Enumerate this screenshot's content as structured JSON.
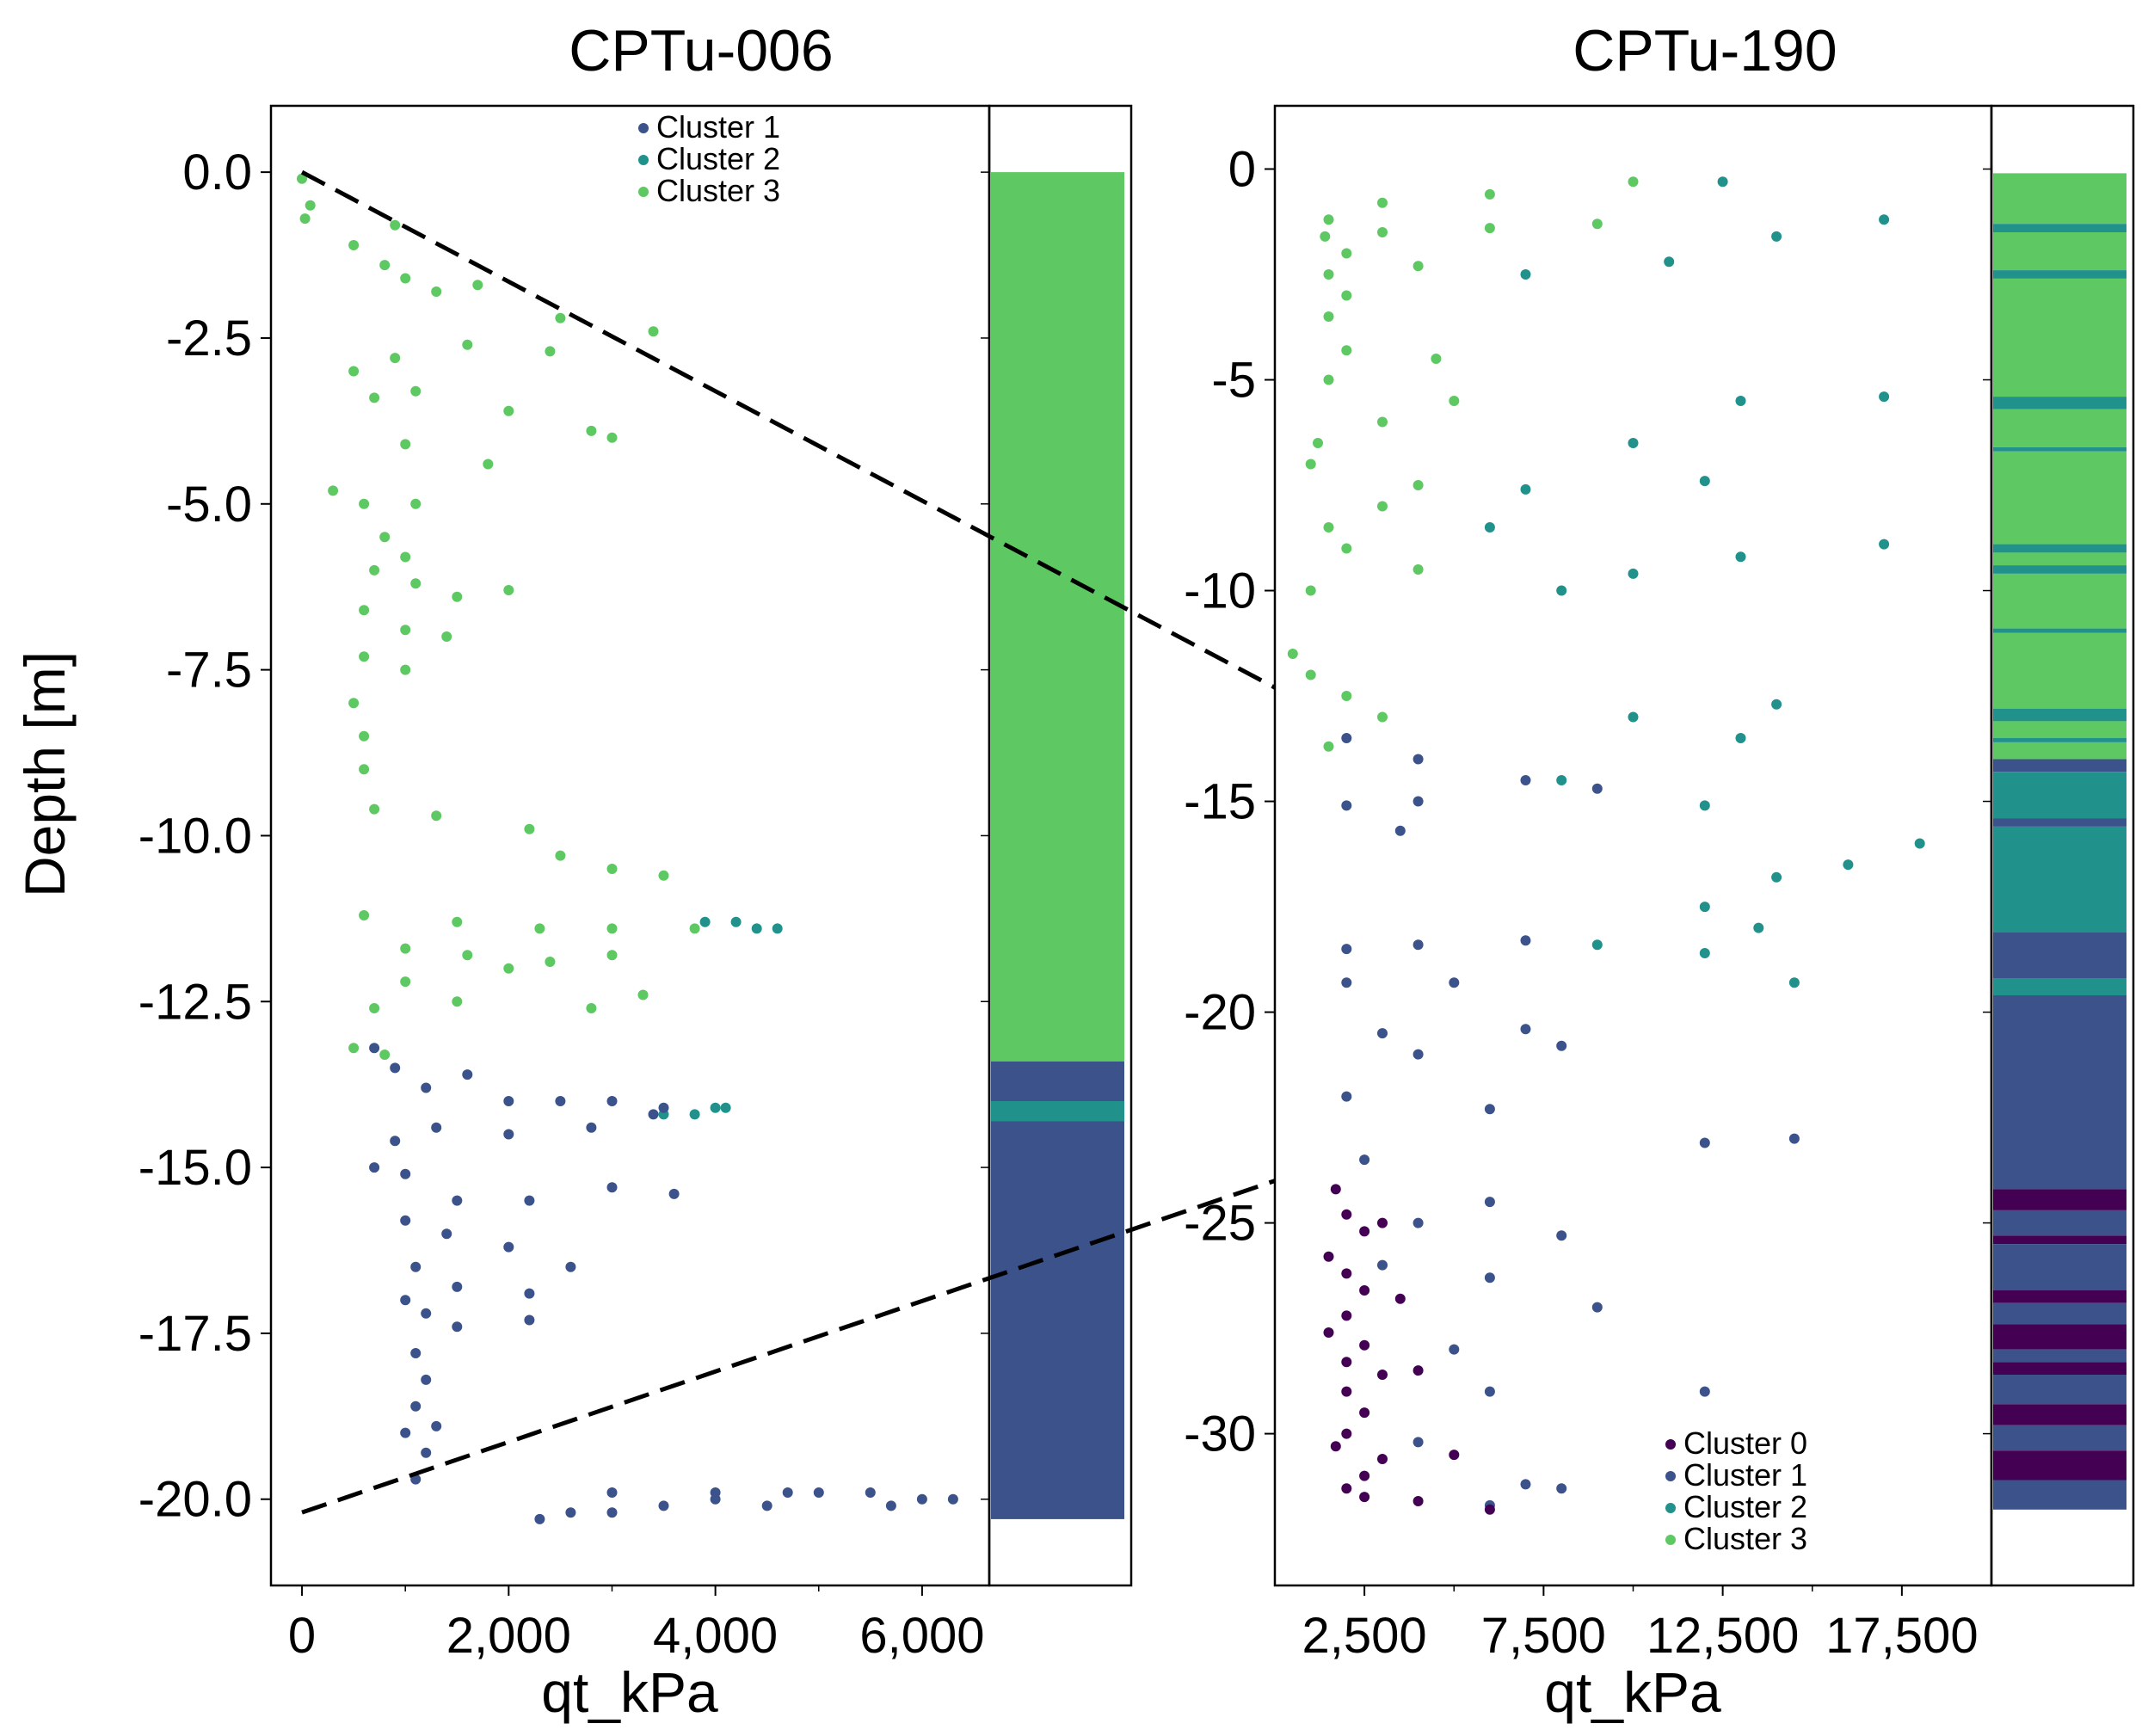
{
  "colors": {
    "cluster_0": "#440154",
    "cluster_1": "#3b528b",
    "cluster_2": "#21918c",
    "cluster_3": "#5ec962",
    "connector": "#000000"
  },
  "ylabel": "Depth [m]",
  "chart_data": [
    {
      "type": "scatter",
      "title": "CPTu-006",
      "xlabel": "qt_kPa",
      "ylabel": "Depth [m]",
      "xlim": [
        -300,
        6650
      ],
      "ylim": [
        -21.3,
        1.0
      ],
      "xticks": [
        0,
        2000,
        4000,
        6000
      ],
      "xtick_labels": [
        "0",
        "2,000",
        "4,000",
        "6,000"
      ],
      "yticks": [
        0,
        -2.5,
        -5,
        -7.5,
        -10,
        -12.5,
        -15,
        -17.5,
        -20
      ],
      "ytick_labels": [
        "0.0",
        "-2.5",
        "-5.0",
        "-7.5",
        "-10.0",
        "-12.5",
        "-15.0",
        "-17.5",
        "-20.0"
      ],
      "legend": [
        "Cluster 1",
        "Cluster 2",
        "Cluster 3"
      ],
      "legend_position": "top-right",
      "series": [
        {
          "name": "Cluster 3",
          "cluster": 3,
          "x": [
            0,
            30,
            80,
            900,
            500,
            800,
            1000,
            1300,
            1700,
            2500,
            3400,
            500,
            900,
            1600,
            2400,
            700,
            1100,
            2000,
            2800,
            1000,
            1800,
            3000,
            300,
            600,
            1100,
            800,
            1000,
            700,
            1100,
            1500,
            2000,
            600,
            1000,
            1400,
            600,
            1000,
            500,
            600,
            600,
            700,
            1300,
            2200,
            2500,
            3000,
            3500,
            600,
            1500,
            2300,
            3000,
            1000,
            1600,
            2400,
            3000,
            3800,
            1000,
            2000,
            3300,
            700,
            1500,
            2800,
            500,
            800
          ],
          "y": [
            -0.1,
            -0.7,
            -0.5,
            -0.8,
            -1.1,
            -1.4,
            -1.6,
            -1.8,
            -1.7,
            -2.2,
            -2.4,
            -3.0,
            -2.8,
            -2.6,
            -2.7,
            -3.4,
            -3.3,
            -3.6,
            -3.9,
            -4.1,
            -4.4,
            -4.0,
            -4.8,
            -5.0,
            -5.0,
            -5.5,
            -5.8,
            -6.0,
            -6.2,
            -6.4,
            -6.3,
            -6.6,
            -6.9,
            -7.0,
            -7.3,
            -7.5,
            -8.0,
            -8.5,
            -9.0,
            -9.6,
            -9.7,
            -9.9,
            -10.3,
            -10.5,
            -10.6,
            -11.2,
            -11.3,
            -11.4,
            -11.4,
            -11.7,
            -11.8,
            -11.9,
            -11.8,
            -11.4,
            -12.2,
            -12.0,
            -12.4,
            -12.6,
            -12.5,
            -12.6,
            -13.2,
            -13.3
          ]
        },
        {
          "name": "Cluster 2",
          "cluster": 2,
          "x": [
            3900,
            4200,
            4400,
            4600,
            3500,
            3800,
            4000,
            4100
          ],
          "y": [
            -11.3,
            -11.3,
            -11.4,
            -11.4,
            -14.2,
            -14.2,
            -14.1,
            -14.1
          ]
        },
        {
          "name": "Cluster 1",
          "cluster": 1,
          "x": [
            700,
            900,
            1200,
            1600,
            2000,
            2500,
            3000,
            3500,
            900,
            1300,
            2000,
            2800,
            3400,
            700,
            1000,
            1500,
            2200,
            3000,
            3600,
            1000,
            1400,
            2000,
            2600,
            1100,
            1500,
            2200,
            1000,
            1200,
            1500,
            2200,
            1100,
            1200,
            1100,
            1300,
            1000,
            1200,
            1100,
            2300,
            2600,
            3000,
            3500,
            4000,
            4500,
            5000,
            5500,
            5700,
            6000,
            6300,
            3000,
            4000,
            4700
          ],
          "y": [
            -13.2,
            -13.5,
            -13.8,
            -13.6,
            -14.0,
            -14.0,
            -14.0,
            -14.1,
            -14.6,
            -14.4,
            -14.5,
            -14.4,
            -14.2,
            -15.0,
            -15.1,
            -15.5,
            -15.5,
            -15.3,
            -15.4,
            -15.8,
            -16.0,
            -16.2,
            -16.5,
            -16.5,
            -16.8,
            -16.9,
            -17.0,
            -17.2,
            -17.4,
            -17.3,
            -17.8,
            -18.2,
            -18.6,
            -18.9,
            -19.0,
            -19.3,
            -19.7,
            -20.3,
            -20.2,
            -20.2,
            -20.1,
            -20.0,
            -20.1,
            -19.9,
            -19.9,
            -20.1,
            -20.0,
            -20.0,
            -19.9,
            -19.9,
            -19.9
          ]
        }
      ],
      "cluster_bar": [
        {
          "cluster": 3,
          "top": 0,
          "bottom": -13.4
        },
        {
          "cluster": 1,
          "top": -13.4,
          "bottom": -14.0
        },
        {
          "cluster": 2,
          "top": -14.0,
          "bottom": -14.3
        },
        {
          "cluster": 1,
          "top": -14.3,
          "bottom": -20.3
        }
      ]
    },
    {
      "type": "scatter",
      "title": "CPTu-190",
      "xlabel": "qt_kPa",
      "xlim": [
        0,
        20000
      ],
      "ylim": [
        -33.6,
        1.5
      ],
      "xticks": [
        2500,
        7500,
        12500,
        17500
      ],
      "xtick_labels": [
        "2,500",
        "7,500",
        "12,500",
        "17,500"
      ],
      "yticks": [
        0,
        -5,
        -10,
        -15,
        -20,
        -25,
        -30
      ],
      "ytick_labels": [
        "0",
        "-5",
        "-10",
        "-15",
        "-20",
        "-25",
        "-30"
      ],
      "legend": [
        "Cluster 0",
        "Cluster 1",
        "Cluster 2",
        "Cluster 3"
      ],
      "legend_position": "bottom-right",
      "series": [
        {
          "name": "Cluster 3",
          "cluster": 3,
          "x": [
            10000,
            6000,
            3000,
            1500,
            1400,
            3000,
            6000,
            9000,
            2000,
            1500,
            4000,
            2000,
            1500,
            4500,
            2000,
            1500,
            5000,
            3000,
            1200,
            1000,
            4000,
            3000,
            1500,
            2000,
            4000,
            1000,
            500,
            1000,
            2000,
            3000,
            1500
          ],
          "y": [
            -0.3,
            -0.6,
            -0.8,
            -1.2,
            -1.6,
            -1.5,
            -1.4,
            -1.3,
            -2.0,
            -2.5,
            -2.3,
            -3.0,
            -3.5,
            -4.5,
            -4.3,
            -5.0,
            -5.5,
            -6.0,
            -6.5,
            -7.0,
            -7.5,
            -8.0,
            -8.5,
            -9.0,
            -9.5,
            -10.0,
            -11.5,
            -12.0,
            -12.5,
            -13.0,
            -13.7
          ]
        },
        {
          "name": "Cluster 2",
          "cluster": 2,
          "x": [
            12500,
            17000,
            14000,
            11000,
            7000,
            17000,
            13000,
            10000,
            12000,
            7000,
            6000,
            17000,
            13000,
            10000,
            8000,
            14000,
            10000,
            13000,
            8000,
            12000,
            18000,
            16000,
            14000,
            12000,
            13500,
            9000,
            12000,
            14500
          ],
          "y": [
            -0.3,
            -1.2,
            -1.6,
            -2.2,
            -2.5,
            -5.4,
            -5.5,
            -6.5,
            -7.4,
            -7.6,
            -8.5,
            -8.9,
            -9.2,
            -9.6,
            -10.0,
            -12.7,
            -13.0,
            -13.5,
            -14.5,
            -15.1,
            -16.0,
            -16.5,
            -16.8,
            -17.5,
            -18.0,
            -18.4,
            -18.6,
            -19.3
          ]
        },
        {
          "name": "Cluster 1",
          "cluster": 1,
          "x": [
            2000,
            4000,
            7000,
            9000,
            4000,
            2000,
            3500,
            2000,
            4000,
            7000,
            2000,
            5000,
            3000,
            7000,
            4000,
            8000,
            2000,
            6000,
            2500,
            12000,
            14500,
            6000,
            4000,
            8000,
            3000,
            6000,
            9000,
            5000,
            6000,
            12000,
            4000,
            7000,
            8000,
            6000
          ],
          "y": [
            -13.5,
            -14.0,
            -14.5,
            -14.7,
            -15.0,
            -15.1,
            -15.7,
            -18.5,
            -18.4,
            -18.3,
            -19.3,
            -19.3,
            -20.5,
            -20.4,
            -21.0,
            -20.8,
            -22.0,
            -22.3,
            -23.5,
            -23.1,
            -23.0,
            -24.5,
            -25.0,
            -25.3,
            -26.0,
            -26.3,
            -27.0,
            -28.0,
            -29.0,
            -29.0,
            -30.2,
            -31.2,
            -31.3,
            -31.7
          ]
        },
        {
          "name": "Cluster 0",
          "cluster": 0,
          "x": [
            1700,
            2000,
            2500,
            3000,
            1500,
            2000,
            2500,
            3500,
            2000,
            1500,
            2500,
            2000,
            3000,
            4000,
            2000,
            2500,
            2000,
            1700,
            3000,
            5000,
            2500,
            2000,
            2500,
            4000,
            6000
          ],
          "y": [
            -24.2,
            -24.8,
            -25.2,
            -25.0,
            -25.8,
            -26.2,
            -26.6,
            -26.8,
            -27.2,
            -27.6,
            -27.9,
            -28.3,
            -28.6,
            -28.5,
            -29.0,
            -29.5,
            -30.0,
            -30.3,
            -30.6,
            -30.5,
            -31.0,
            -31.3,
            -31.5,
            -31.6,
            -31.8
          ]
        }
      ],
      "cluster_bar": [
        {
          "cluster": 3,
          "top": -0.1,
          "bottom": -1.3
        },
        {
          "cluster": 2,
          "top": -1.3,
          "bottom": -1.5
        },
        {
          "cluster": 3,
          "top": -1.5,
          "bottom": -2.4
        },
        {
          "cluster": 2,
          "top": -2.4,
          "bottom": -2.6
        },
        {
          "cluster": 3,
          "top": -2.6,
          "bottom": -5.4
        },
        {
          "cluster": 2,
          "top": -5.4,
          "bottom": -5.7
        },
        {
          "cluster": 3,
          "top": -5.7,
          "bottom": -6.6
        },
        {
          "cluster": 2,
          "top": -6.6,
          "bottom": -6.7
        },
        {
          "cluster": 3,
          "top": -6.7,
          "bottom": -8.9
        },
        {
          "cluster": 2,
          "top": -8.9,
          "bottom": -9.1
        },
        {
          "cluster": 3,
          "top": -9.1,
          "bottom": -9.4
        },
        {
          "cluster": 2,
          "top": -9.4,
          "bottom": -9.6
        },
        {
          "cluster": 3,
          "top": -9.6,
          "bottom": -10.9
        },
        {
          "cluster": 2,
          "top": -10.9,
          "bottom": -11.0
        },
        {
          "cluster": 3,
          "top": -11.0,
          "bottom": -12.8
        },
        {
          "cluster": 2,
          "top": -12.8,
          "bottom": -13.1
        },
        {
          "cluster": 3,
          "top": -13.1,
          "bottom": -13.5
        },
        {
          "cluster": 2,
          "top": -13.5,
          "bottom": -13.6
        },
        {
          "cluster": 3,
          "top": -13.6,
          "bottom": -14.0
        },
        {
          "cluster": 1,
          "top": -14.0,
          "bottom": -14.3
        },
        {
          "cluster": 2,
          "top": -14.3,
          "bottom": -15.4
        },
        {
          "cluster": 1,
          "top": -15.4,
          "bottom": -15.6
        },
        {
          "cluster": 2,
          "top": -15.6,
          "bottom": -18.1
        },
        {
          "cluster": 1,
          "top": -18.1,
          "bottom": -19.2
        },
        {
          "cluster": 2,
          "top": -19.2,
          "bottom": -19.6
        },
        {
          "cluster": 1,
          "top": -19.6,
          "bottom": -24.2
        },
        {
          "cluster": 0,
          "top": -24.2,
          "bottom": -24.7
        },
        {
          "cluster": 1,
          "top": -24.7,
          "bottom": -25.3
        },
        {
          "cluster": 0,
          "top": -25.3,
          "bottom": -25.5
        },
        {
          "cluster": 1,
          "top": -25.5,
          "bottom": -26.6
        },
        {
          "cluster": 0,
          "top": -26.6,
          "bottom": -26.9
        },
        {
          "cluster": 1,
          "top": -26.9,
          "bottom": -27.4
        },
        {
          "cluster": 0,
          "top": -27.4,
          "bottom": -28.0
        },
        {
          "cluster": 1,
          "top": -28.0,
          "bottom": -28.3
        },
        {
          "cluster": 0,
          "top": -28.3,
          "bottom": -28.6
        },
        {
          "cluster": 1,
          "top": -28.6,
          "bottom": -29.3
        },
        {
          "cluster": 0,
          "top": -29.3,
          "bottom": -29.8
        },
        {
          "cluster": 1,
          "top": -29.8,
          "bottom": -30.4
        },
        {
          "cluster": 0,
          "top": -30.4,
          "bottom": -31.1
        },
        {
          "cluster": 1,
          "top": -31.1,
          "bottom": -31.8
        }
      ]
    }
  ],
  "connector_lines": [
    {
      "from": {
        "panel": 0,
        "x": 0,
        "y": 0
      },
      "to": {
        "panel": 1,
        "x": 0,
        "y": -12.3
      }
    },
    {
      "from": {
        "panel": 0,
        "x": 0,
        "y": -20.2
      },
      "to": {
        "panel": 1,
        "x": 0,
        "y": -24.0
      }
    }
  ]
}
